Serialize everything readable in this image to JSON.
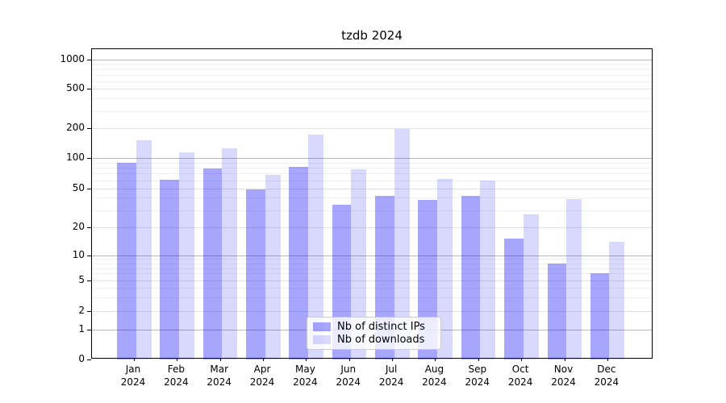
{
  "chart_data": {
    "type": "bar",
    "title": "tzdb 2024",
    "categories": [
      "Jan 2024",
      "Feb 2024",
      "Mar 2024",
      "Apr 2024",
      "May 2024",
      "Jun 2024",
      "Jul 2024",
      "Aug 2024",
      "Sep 2024",
      "Oct 2024",
      "Nov 2024",
      "Dec 2024"
    ],
    "series": [
      {
        "name": "Nb of distinct IPs",
        "color": "#a7a7fb",
        "fill": "rgba(0,0,245,0.35)",
        "values": [
          90,
          61,
          79,
          49,
          81,
          34,
          42,
          38,
          42,
          15,
          8,
          6
        ]
      },
      {
        "name": "Nb of downloads",
        "color": "#d9d9fc",
        "fill": "rgba(0,0,245,0.15)",
        "values": [
          152,
          115,
          125,
          68,
          174,
          77,
          198,
          62,
          60,
          27,
          39,
          14
        ]
      }
    ],
    "yticks": [
      0,
      1,
      2,
      5,
      10,
      20,
      50,
      100,
      200,
      500,
      1000
    ],
    "yscale": "log-like (asinh near zero)",
    "ylim": [
      0,
      1300
    ],
    "xlabel": "",
    "ylabel": "",
    "grid": true,
    "legend_position": "lower center"
  }
}
